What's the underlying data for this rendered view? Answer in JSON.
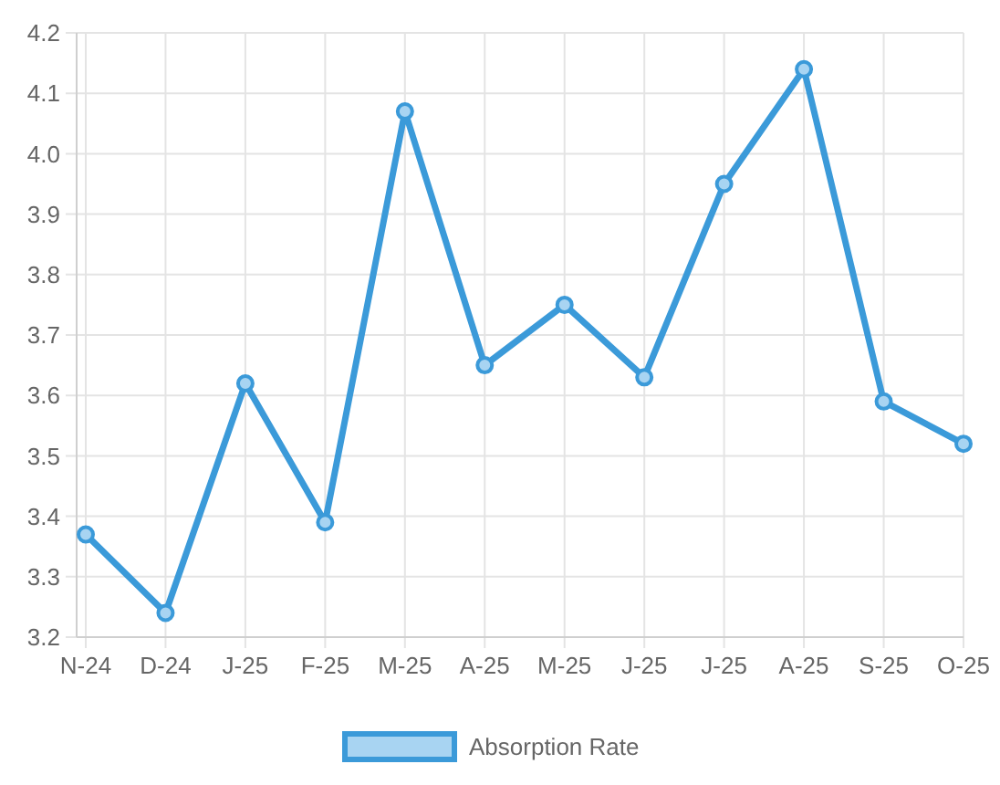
{
  "chart_data": {
    "type": "line",
    "categories": [
      "N-24",
      "D-24",
      "J-25",
      "F-25",
      "M-25",
      "A-25",
      "M-25",
      "J-25",
      "J-25",
      "A-25",
      "S-25",
      "O-25"
    ],
    "series": [
      {
        "name": "Absorption Rate",
        "color": "#3b9ad9",
        "values": [
          3.37,
          3.24,
          3.62,
          3.39,
          4.07,
          3.65,
          3.75,
          3.63,
          3.95,
          4.14,
          3.59,
          3.52
        ]
      }
    ],
    "ylim": [
      3.2,
      4.2
    ],
    "yticks": [
      3.2,
      3.3,
      3.4,
      3.5,
      3.6,
      3.7,
      3.8,
      3.9,
      {
        "value": 4.0,
        "label": "4.0"
      },
      4.1,
      4.2
    ],
    "grid": true,
    "legend": "bottom",
    "marker": "circle",
    "line_style": "solid"
  }
}
